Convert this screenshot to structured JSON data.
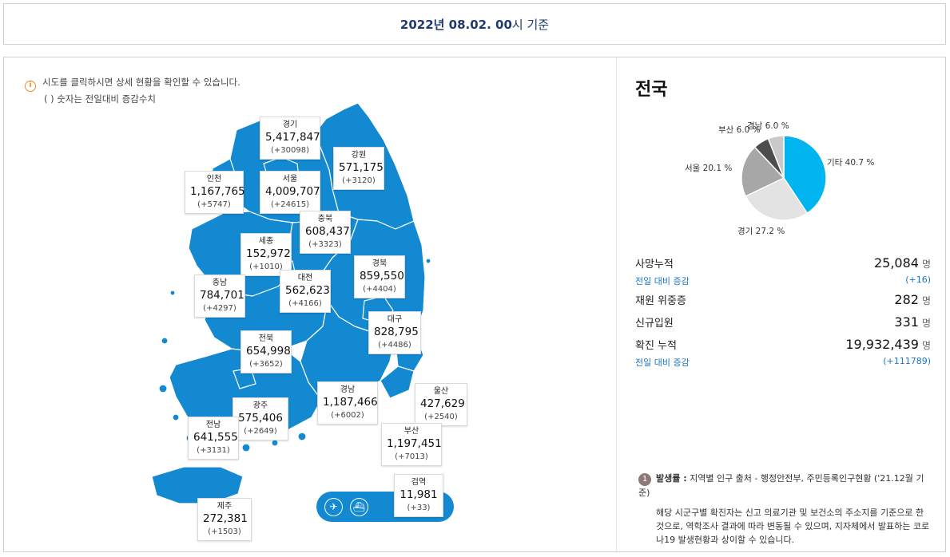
{
  "header": {
    "date": "2022년 08.02. 00",
    "suffix": "시 기준"
  },
  "notice": {
    "line1": "시도를 클릭하시면 상세 현황을 확인할 수 있습니다.",
    "line2": "( ) 숫자는 전일대비 증감수치"
  },
  "regions": [
    {
      "name": "경기",
      "count": "5,417,847",
      "delta": "(+30098)"
    },
    {
      "name": "강원",
      "count": "571,175",
      "delta": "(+3120)"
    },
    {
      "name": "인천",
      "count": "1,167,765",
      "delta": "(+5747)"
    },
    {
      "name": "서울",
      "count": "4,009,707",
      "delta": "(+24615)"
    },
    {
      "name": "충북",
      "count": "608,437",
      "delta": "(+3323)"
    },
    {
      "name": "세종",
      "count": "152,972",
      "delta": "(+1010)"
    },
    {
      "name": "경북",
      "count": "859,550",
      "delta": "(+4404)"
    },
    {
      "name": "충남",
      "count": "784,701",
      "delta": "(+4297)"
    },
    {
      "name": "대전",
      "count": "562,623",
      "delta": "(+4166)"
    },
    {
      "name": "대구",
      "count": "828,795",
      "delta": "(+4486)"
    },
    {
      "name": "전북",
      "count": "654,998",
      "delta": "(+3652)"
    },
    {
      "name": "경남",
      "count": "1,187,466",
      "delta": "(+6002)"
    },
    {
      "name": "울산",
      "count": "427,629",
      "delta": "(+2540)"
    },
    {
      "name": "광주",
      "count": "575,406",
      "delta": "(+2649)"
    },
    {
      "name": "전남",
      "count": "641,555",
      "delta": "(+3131)"
    },
    {
      "name": "부산",
      "count": "1,197,451",
      "delta": "(+7013)"
    },
    {
      "name": "검역",
      "count": "11,981",
      "delta": "(+33)"
    },
    {
      "name": "제주",
      "count": "272,381",
      "delta": "(+1503)"
    }
  ],
  "side": {
    "title": "전국",
    "stats": [
      {
        "label": "사망누적",
        "value": "25,084",
        "unit": "명",
        "sub_label": "전일 대비 증감",
        "sub_value": "(+16)"
      },
      {
        "label": "재원 위중증",
        "value": "282",
        "unit": "명"
      },
      {
        "label": "신규입원",
        "value": "331",
        "unit": "명"
      },
      {
        "label": "확진 누적",
        "value": "19,932,439",
        "unit": "명",
        "sub_label": "전일 대비 증감",
        "sub_value": "(+111789)"
      }
    ],
    "footnote": {
      "badge": "1",
      "title": "발생률 :",
      "source": "지역별 인구 출처 - 행정안전부, 주민등록인구현황 ('21.12월 기준)",
      "body": "해당 시군구별 확진자는 신고 의료기관 및 보건소의 주소지를 기준으로 한 것으로, 역학조사 결과에 따라 변동될 수 있으며, 지자체에서 발표하는 코로나19 발생현황과 상이할 수 있습니다."
    }
  },
  "chart_data": {
    "type": "pie",
    "slices": [
      {
        "label": "기타",
        "value": 40.7,
        "color": "#00b4f0"
      },
      {
        "label": "경기",
        "value": 27.2,
        "color": "#e3e3e3"
      },
      {
        "label": "서울",
        "value": 20.1,
        "color": "#a7a7a7"
      },
      {
        "label": "부산",
        "value": 6.0,
        "color": "#4d4d4d"
      },
      {
        "label": "경남",
        "value": 6.0,
        "color": "#c9c9c9"
      }
    ],
    "labels": {
      "기타": "기타 40.7 %",
      "경기": "경기 27.2 %",
      "서울": "서울 20.1 %",
      "부산": "부산 6.0 %",
      "경남": "경남 6.0 %"
    }
  }
}
